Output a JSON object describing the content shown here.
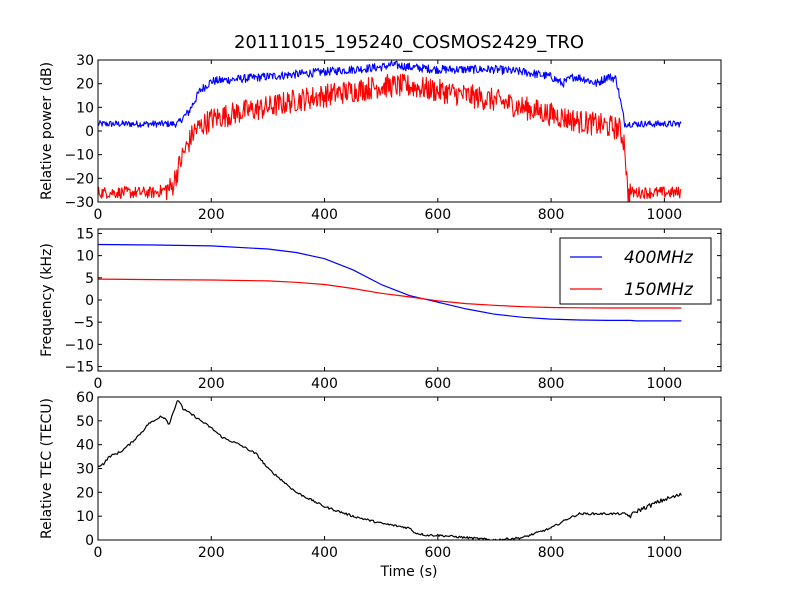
{
  "figure": {
    "title": "20111015_195240_COSMOS2429_TRO",
    "xlabel": "Time (s)"
  },
  "colors": {
    "blue": "#0000ff",
    "red": "#ff0000",
    "black": "#000000"
  },
  "chart_data": [
    {
      "type": "line",
      "title": "20111015_195240_COSMOS2429_TRO",
      "xlabel": "",
      "ylabel": "Relative power (dB)",
      "xlim": [
        0,
        1100
      ],
      "ylim": [
        -30,
        30
      ],
      "xticks": [
        0,
        200,
        400,
        600,
        800,
        1000
      ],
      "yticks": [
        -30,
        -20,
        -10,
        0,
        10,
        20,
        30
      ],
      "grid": false,
      "legend": null,
      "series": [
        {
          "color": "#0000ff",
          "x": [
            0,
            100,
            140,
            160,
            180,
            200,
            250,
            300,
            350,
            400,
            450,
            500,
            520,
            550,
            600,
            650,
            700,
            750,
            800,
            820,
            840,
            860,
            880,
            900,
            915,
            930,
            960,
            1000,
            1030
          ],
          "y": [
            3,
            3,
            3,
            8,
            17,
            21,
            22,
            23,
            24,
            25,
            26,
            27,
            28,
            27,
            26,
            26,
            26,
            25,
            23,
            20,
            23,
            22,
            20,
            23,
            22,
            3,
            3,
            3,
            3
          ]
        },
        {
          "color": "#ff0000",
          "x": [
            0,
            100,
            130,
            150,
            170,
            200,
            250,
            300,
            350,
            400,
            450,
            500,
            550,
            600,
            650,
            700,
            750,
            800,
            850,
            900,
            920,
            930,
            935,
            960,
            1000,
            1030
          ],
          "y": [
            -26,
            -26,
            -24,
            -10,
            0,
            5,
            8,
            10,
            13,
            15,
            17,
            19,
            19,
            17,
            15,
            13,
            10,
            7,
            4,
            2,
            1,
            -5,
            -26,
            -26,
            -26,
            -26
          ]
        }
      ]
    },
    {
      "type": "line",
      "ylabel": "Frequency (kHz)",
      "xlim": [
        0,
        1100
      ],
      "ylim": [
        -16,
        16
      ],
      "xticks": [
        0,
        200,
        400,
        600,
        800,
        1000
      ],
      "yticks": [
        -15,
        -10,
        -5,
        0,
        5,
        10,
        15
      ],
      "grid": false,
      "legend": "top-right",
      "series": [
        {
          "name": "400MHz",
          "color": "#0000ff",
          "x": [
            0,
            100,
            200,
            300,
            350,
            400,
            450,
            500,
            550,
            600,
            650,
            700,
            750,
            800,
            850,
            900,
            940,
            950,
            1030
          ],
          "y": [
            12.5,
            12.4,
            12.2,
            11.5,
            10.7,
            9.3,
            6.8,
            3.5,
            1.0,
            -0.5,
            -2.0,
            -3.2,
            -3.9,
            -4.3,
            -4.5,
            -4.6,
            -4.6,
            -4.7,
            -4.7
          ]
        },
        {
          "name": "150MHz",
          "color": "#ff0000",
          "x": [
            0,
            100,
            200,
            300,
            350,
            400,
            450,
            500,
            550,
            600,
            650,
            700,
            750,
            800,
            850,
            900,
            950,
            1030
          ],
          "y": [
            4.7,
            4.6,
            4.5,
            4.3,
            4.0,
            3.5,
            2.6,
            1.5,
            0.7,
            -0.2,
            -0.8,
            -1.2,
            -1.5,
            -1.7,
            -1.75,
            -1.8,
            -1.8,
            -1.8
          ]
        }
      ]
    },
    {
      "type": "line",
      "ylabel": "Relative TEC (TECU)",
      "xlabel": "Time (s)",
      "xlim": [
        0,
        1100
      ],
      "ylim": [
        0,
        60
      ],
      "xticks": [
        0,
        200,
        400,
        600,
        800,
        1000
      ],
      "yticks": [
        0,
        10,
        20,
        30,
        40,
        50,
        60
      ],
      "grid": false,
      "legend": null,
      "series": [
        {
          "color": "#000000",
          "x": [
            0,
            10,
            20,
            40,
            60,
            80,
            90,
            100,
            110,
            120,
            125,
            130,
            140,
            145,
            150,
            170,
            200,
            220,
            250,
            280,
            300,
            350,
            400,
            450,
            500,
            550,
            560,
            580,
            600,
            650,
            700,
            750,
            800,
            830,
            850,
            880,
            930,
            940,
            950,
            970,
            1000,
            1030
          ],
          "y": [
            31,
            32,
            35,
            37,
            41,
            46,
            49,
            50,
            52,
            51,
            48,
            52,
            58,
            58,
            55,
            52,
            47,
            43,
            40,
            36,
            30,
            20,
            14,
            10,
            7,
            5,
            3,
            2,
            2,
            1,
            0,
            1,
            5,
            9,
            11,
            11,
            11,
            10,
            12,
            14,
            17,
            19
          ]
        }
      ]
    }
  ]
}
